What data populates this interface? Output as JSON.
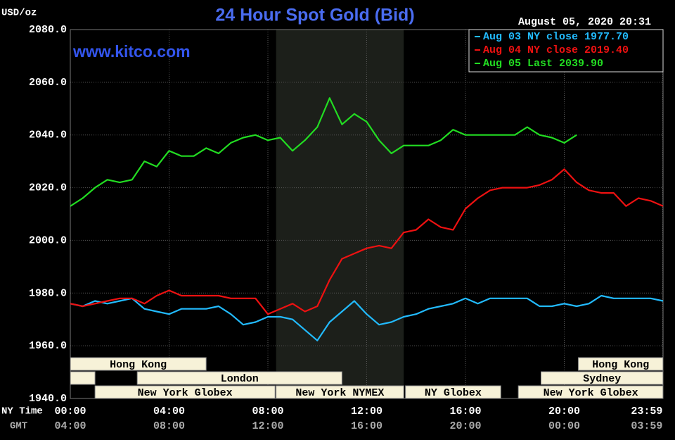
{
  "chart_data": {
    "type": "line",
    "title": "24 Hour Spot Gold (Bid)",
    "timestamp": "August 05, 2020 20:31",
    "watermark": "www.kitco.com",
    "y_label": "USD/oz",
    "x_label": "NY Time",
    "x2_label": "GMT",
    "x": [
      0,
      0.5,
      1,
      1.5,
      2,
      2.5,
      3,
      3.5,
      4,
      4.5,
      5,
      5.5,
      6,
      6.5,
      7,
      7.5,
      8,
      8.5,
      9,
      9.5,
      10,
      10.5,
      11,
      11.5,
      12,
      12.5,
      13,
      13.5,
      14,
      14.5,
      15,
      15.5,
      16,
      16.5,
      17,
      17.5,
      18,
      18.5,
      19,
      19.5,
      20,
      20.5,
      21,
      21.5,
      22,
      22.5,
      23,
      23.5,
      24
    ],
    "xlim": [
      0,
      24
    ],
    "xticks": [
      {
        "value": 0,
        "label": "00:00"
      },
      {
        "value": 4,
        "label": "04:00"
      },
      {
        "value": 8,
        "label": "08:00"
      },
      {
        "value": 12,
        "label": "12:00"
      },
      {
        "value": 16,
        "label": "16:00"
      },
      {
        "value": 20,
        "label": "20:00"
      },
      {
        "value": 23.983,
        "label": "23:59"
      }
    ],
    "x2ticks": [
      "04:00",
      "08:00",
      "12:00",
      "16:00",
      "20:00",
      "00:00",
      "03:59"
    ],
    "ylim": [
      1940,
      2080
    ],
    "yticks": [
      {
        "value": 1940,
        "label": "1940.0"
      },
      {
        "value": 1960,
        "label": "1960.0"
      },
      {
        "value": 1980,
        "label": "1980.0"
      },
      {
        "value": 2000,
        "label": "2000.0"
      },
      {
        "value": 2020,
        "label": "2020.0"
      },
      {
        "value": 2040,
        "label": "2040.0"
      },
      {
        "value": 2060,
        "label": "2060.0"
      },
      {
        "value": 2080,
        "label": "2080.0"
      }
    ],
    "grid": true,
    "legend": "upper right",
    "shade": [
      8.333,
      13.5
    ],
    "series": [
      {
        "name": "Aug 03 NY close 1977.70",
        "color": "#22bbff",
        "values": [
          1976,
          1975,
          1977,
          1976,
          1977,
          1978,
          1974,
          1973,
          1972,
          1974,
          1974,
          1974,
          1975,
          1972,
          1968,
          1969,
          1971,
          1971,
          1970,
          1966,
          1962,
          1969,
          1973,
          1977,
          1972,
          1968,
          1969,
          1971,
          1972,
          1974,
          1975,
          1976,
          1978,
          1976,
          1978,
          1978,
          1978,
          1978,
          1975,
          1975,
          1976,
          1975,
          1976,
          1979,
          1978,
          1978,
          1978,
          1978,
          1977
        ]
      },
      {
        "name": "Aug 04 NY close 2019.40",
        "color": "#ee1111",
        "values": [
          1976,
          1975,
          1976,
          1977,
          1978,
          1978,
          1976,
          1979,
          1981,
          1979,
          1979,
          1979,
          1979,
          1978,
          1978,
          1978,
          1972,
          1974,
          1976,
          1973,
          1975,
          1985,
          1993,
          1995,
          1997,
          1998,
          1997,
          2003,
          2004,
          2008,
          2005,
          2004,
          2012,
          2016,
          2019,
          2020,
          2020,
          2020,
          2021,
          2023,
          2027,
          2022,
          2019,
          2018,
          2018,
          2013,
          2016,
          2015,
          2013
        ]
      },
      {
        "name": "Aug 05 Last 2039.90",
        "color": "#22dd22",
        "values": [
          2013,
          2016,
          2020,
          2023,
          2022,
          2023,
          2030,
          2028,
          2034,
          2032,
          2032,
          2035,
          2033,
          2037,
          2039,
          2040,
          2038,
          2039,
          2034,
          2038,
          2043,
          2054,
          2044,
          2048,
          2045,
          2038,
          2033,
          2036,
          2036,
          2036,
          2038,
          2042,
          2040,
          2040,
          2040,
          2040,
          2040,
          2043,
          2040,
          2039,
          2037,
          2040,
          null,
          null,
          null,
          null,
          null,
          null,
          null
        ]
      }
    ],
    "sessions": [
      [
        {
          "label": "Hong Kong",
          "start": 0,
          "end": 5.5
        },
        {
          "label": "Hong Kong",
          "start": 20.57,
          "end": 24
        }
      ],
      [
        {
          "start": 0,
          "end": 1
        },
        {
          "label": "London",
          "start": 2.71,
          "end": 11
        },
        {
          "label": "Sydney",
          "start": 19.06,
          "end": 24
        }
      ],
      [
        {
          "label": "New York Globex",
          "start": 1,
          "end": 8.29
        },
        {
          "label": "New York NYMEX",
          "start": 8.33,
          "end": 13.5
        },
        {
          "label": "NY Globex",
          "start": 13.57,
          "end": 17.43
        },
        {
          "label": "New York Globex",
          "start": 18.14,
          "end": 24
        }
      ]
    ]
  }
}
